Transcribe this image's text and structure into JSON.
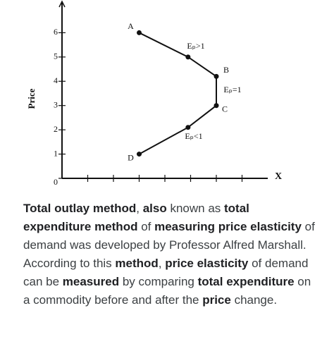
{
  "chart_data": {
    "type": "line",
    "ylabel": "Price",
    "xlabel": "X",
    "x": [
      3,
      4.9,
      6,
      6,
      4.9,
      3
    ],
    "series": [
      {
        "color": "#111111",
        "values": [
          6,
          5,
          4.2,
          3,
          2.1,
          1
        ],
        "point_labels": [
          "A",
          null,
          "B",
          "C",
          null,
          "D"
        ]
      }
    ],
    "annotations": [
      "Eₚ>1",
      "Eₚ=1",
      "Eₚ<1"
    ],
    "xlim": [
      0,
      8
    ],
    "ylim": [
      0,
      7
    ],
    "xticks": [
      1,
      2,
      3,
      4,
      5,
      6,
      7
    ],
    "yticks": [
      0,
      1,
      2,
      3,
      4,
      5,
      6
    ]
  },
  "text": [
    {
      "text": "Total outlay method",
      "bold": true
    },
    {
      "text": ", ",
      "bold": false
    },
    {
      "text": "also",
      "bold": true
    },
    {
      "text": " known as ",
      "bold": false
    },
    {
      "text": "total expenditure method",
      "bold": true
    },
    {
      "text": " of ",
      "bold": false
    },
    {
      "text": "measuring price elasticity",
      "bold": true
    },
    {
      "text": " of demand was developed by Professor Alfred Marshall. According to this ",
      "bold": false
    },
    {
      "text": "method",
      "bold": true
    },
    {
      "text": ", ",
      "bold": false
    },
    {
      "text": "price elasticity",
      "bold": true
    },
    {
      "text": " of demand can be ",
      "bold": false
    },
    {
      "text": "measured",
      "bold": true
    },
    {
      "text": " by comparing ",
      "bold": false
    },
    {
      "text": "total expenditure",
      "bold": true
    },
    {
      "text": " on a commodity before and after the ",
      "bold": false
    },
    {
      "text": "price",
      "bold": true
    },
    {
      "text": " change.",
      "bold": false
    }
  ]
}
